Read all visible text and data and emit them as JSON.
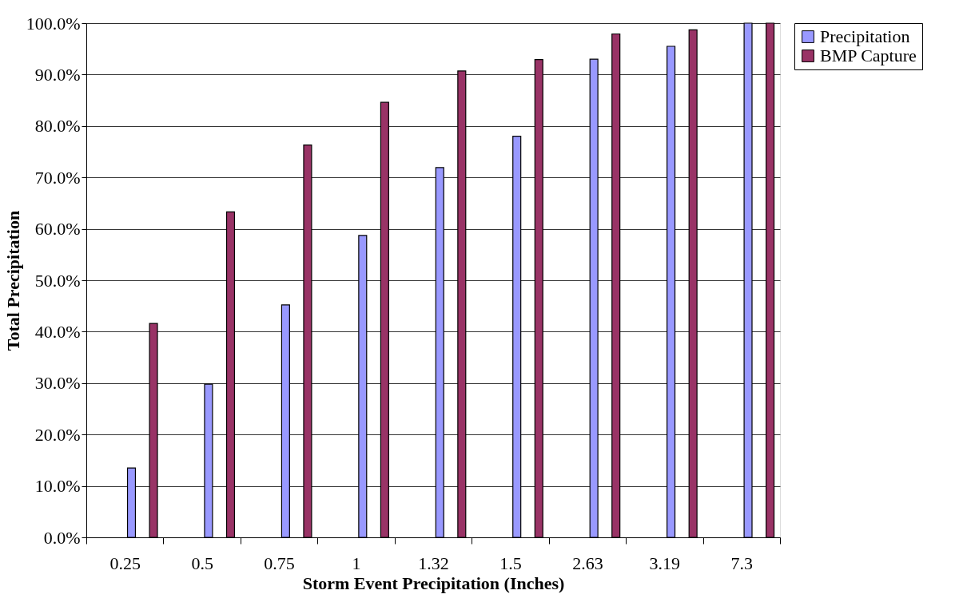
{
  "chart_data": {
    "type": "bar",
    "xlabel": "Storm Event Precipitation (Inches)",
    "ylabel": "Total Precipitation",
    "categories": [
      "0.25",
      "0.5",
      "0.75",
      "1",
      "1.32",
      "1.5",
      "2.63",
      "3.19",
      "7.3"
    ],
    "series": [
      {
        "name": "Precipitation",
        "color": "#9999ff",
        "values": [
          13.5,
          29.8,
          45.2,
          58.7,
          71.9,
          78.0,
          93.0,
          95.5,
          100
        ]
      },
      {
        "name": "BMP Capture",
        "color": "#993366",
        "values": [
          41.6,
          63.3,
          76.3,
          84.6,
          90.7,
          92.9,
          97.9,
          98.7,
          100
        ]
      }
    ],
    "ylim": [
      0,
      100
    ],
    "yticks": [
      {
        "value": 0,
        "label": "0.0%"
      },
      {
        "value": 10,
        "label": "10.0%"
      },
      {
        "value": 20,
        "label": "20.0%"
      },
      {
        "value": 30,
        "label": "30.0%"
      },
      {
        "value": 40,
        "label": "40.0%"
      },
      {
        "value": 50,
        "label": "50.0%"
      },
      {
        "value": 60,
        "label": "60.0%"
      },
      {
        "value": 70,
        "label": "70.0%"
      },
      {
        "value": 80,
        "label": "80.0%"
      },
      {
        "value": 90,
        "label": "90.0%"
      },
      {
        "value": 100,
        "label": "100.0%"
      }
    ],
    "grid": "y",
    "legend": "right"
  }
}
